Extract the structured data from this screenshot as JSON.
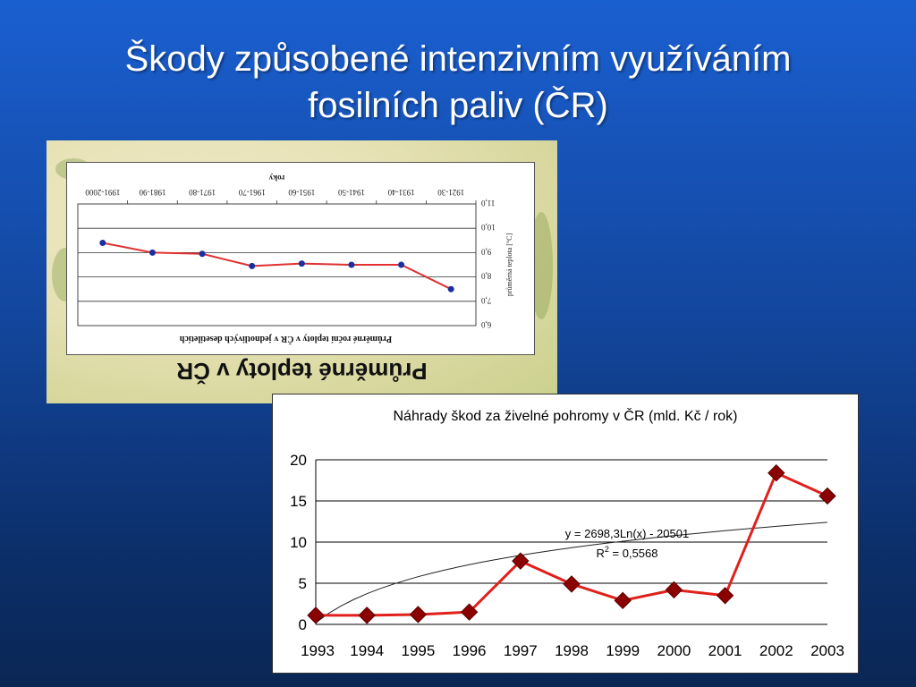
{
  "slide": {
    "title_line1": "Škody způsobené intenzivním využíváním",
    "title_line2": "fosilních paliv (ČR)"
  },
  "temp_chart": {
    "caption": "Průměrné teploty v ČR",
    "inner_title": "Průměrné roční teploty v ČR v jednotlivých desetiletích",
    "x_axis_label": "roky",
    "y_axis_label": "průměrná teplota [°C]",
    "chart_data": {
      "type": "line",
      "title": "Průměrné roční teploty v ČR v jednotlivých desetiletích",
      "xlabel": "roky",
      "ylabel": "průměrná teplota [°C]",
      "categories": [
        "1921-30",
        "1931-40",
        "1941-50",
        "1951-60",
        "1961-70",
        "1971-80",
        "1981-90",
        "1991-2000"
      ],
      "y_ticks": [
        "6,0",
        "7,0",
        "8,0",
        "9,0",
        "10,0",
        "11,0"
      ],
      "ylim": [
        6.0,
        11.0
      ],
      "values": [
        7.5,
        8.5,
        8.5,
        8.55,
        8.45,
        8.95,
        9.0,
        9.4
      ],
      "color": "#e03030",
      "marker_color": "#1a2fa0"
    }
  },
  "dmg_chart": {
    "chart_data": {
      "type": "line",
      "title": "Náhrady škod za živelné pohromy v ČR (mld. Kč / rok)",
      "xlabel": "",
      "ylabel": "",
      "categories": [
        "1993",
        "1994",
        "1995",
        "1996",
        "1997",
        "1998",
        "1999",
        "2000",
        "2001",
        "2002",
        "2003"
      ],
      "values": [
        1.1,
        1.1,
        1.2,
        1.5,
        7.7,
        4.9,
        2.9,
        4.2,
        3.5,
        18.4,
        15.6
      ],
      "ylim": [
        0,
        20
      ],
      "y_ticks": [
        0,
        5,
        10,
        15,
        20
      ],
      "trendline": {
        "type": "logarithmic",
        "equation": "y = 2698,3Ln(x) - 20501",
        "r2_prefix": "R",
        "r2_sup": "2",
        "r2_value": " = 0,5568",
        "start": 0.2,
        "end": 12.4
      },
      "grid": true,
      "legend": "none",
      "line_color": "#e0201c",
      "marker_color": "#8b0000",
      "trend_color": "#222222"
    }
  }
}
